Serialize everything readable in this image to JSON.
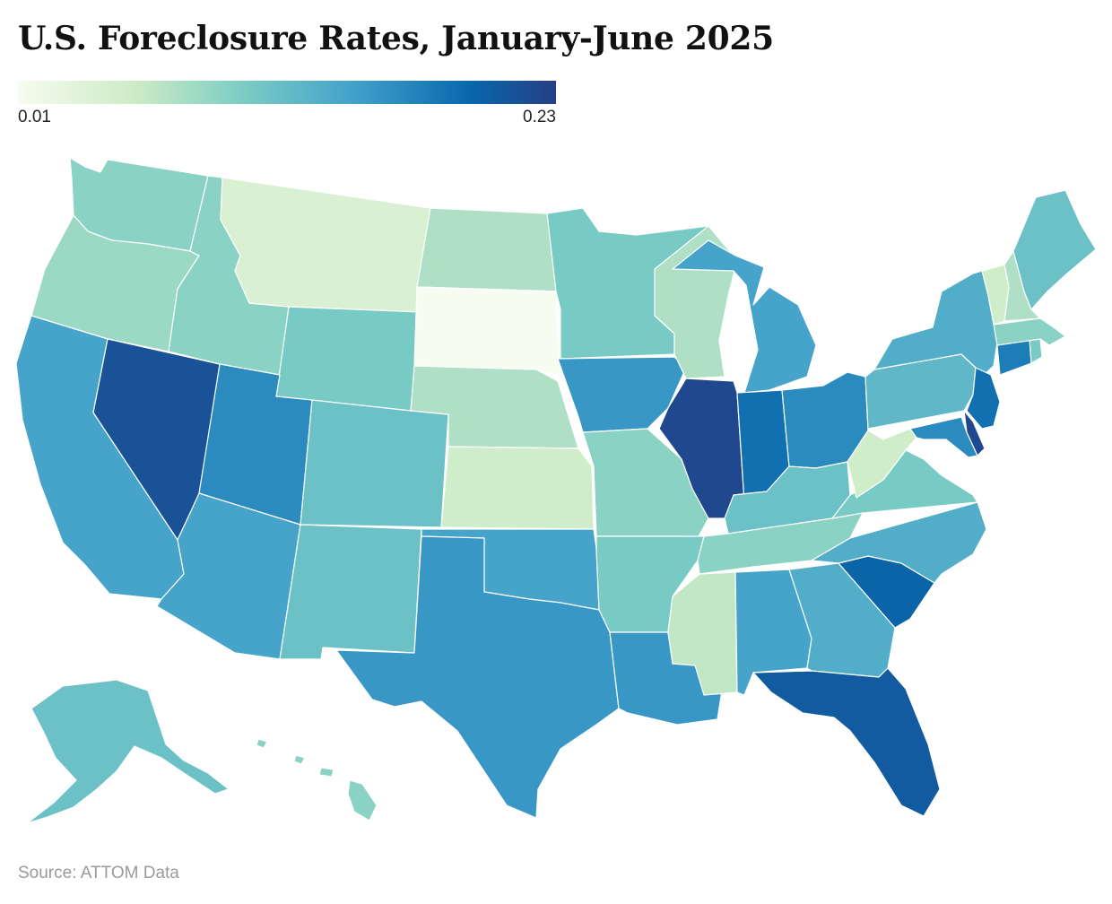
{
  "title": "U.S. Foreclosure Rates, January-June 2025",
  "legend": {
    "min_label": "0.01",
    "max_label": "0.23",
    "min_value": 0.01,
    "max_value": 0.23
  },
  "source": "Source: ATTOM Data",
  "colors": {
    "background": "#ffffff",
    "border": "#ffffff",
    "scale": [
      "#f7fcf0",
      "#ccebc5",
      "#7bccc4",
      "#43a2ca",
      "#0868ac",
      "#273f85"
    ]
  },
  "chart_data": {
    "type": "choropleth",
    "title": "U.S. Foreclosure Rates, January-June 2025",
    "value_range": [
      0.01,
      0.23
    ],
    "states": [
      {
        "name": "Washington",
        "value": 0.09
      },
      {
        "name": "Oregon",
        "value": 0.08
      },
      {
        "name": "California",
        "value": 0.14
      },
      {
        "name": "Nevada",
        "value": 0.21
      },
      {
        "name": "Idaho",
        "value": 0.09
      },
      {
        "name": "Montana",
        "value": 0.04
      },
      {
        "name": "Wyoming",
        "value": 0.1
      },
      {
        "name": "Utah",
        "value": 0.16
      },
      {
        "name": "Arizona",
        "value": 0.14
      },
      {
        "name": "Colorado",
        "value": 0.11
      },
      {
        "name": "New Mexico",
        "value": 0.11
      },
      {
        "name": "North Dakota",
        "value": 0.07
      },
      {
        "name": "South Dakota",
        "value": 0.01
      },
      {
        "name": "Nebraska",
        "value": 0.07
      },
      {
        "name": "Kansas",
        "value": 0.05
      },
      {
        "name": "Oklahoma",
        "value": 0.14
      },
      {
        "name": "Texas",
        "value": 0.15
      },
      {
        "name": "Minnesota",
        "value": 0.1
      },
      {
        "name": "Iowa",
        "value": 0.15
      },
      {
        "name": "Missouri",
        "value": 0.09
      },
      {
        "name": "Arkansas",
        "value": 0.1
      },
      {
        "name": "Louisiana",
        "value": 0.15
      },
      {
        "name": "Wisconsin",
        "value": 0.07
      },
      {
        "name": "Illinois",
        "value": 0.22
      },
      {
        "name": "Michigan",
        "value": 0.14
      },
      {
        "name": "Indiana",
        "value": 0.18
      },
      {
        "name": "Ohio",
        "value": 0.16
      },
      {
        "name": "Kentucky",
        "value": 0.11
      },
      {
        "name": "Tennessee",
        "value": 0.09
      },
      {
        "name": "Mississippi",
        "value": 0.06
      },
      {
        "name": "Alabama",
        "value": 0.14
      },
      {
        "name": "Georgia",
        "value": 0.13
      },
      {
        "name": "Florida",
        "value": 0.2
      },
      {
        "name": "South Carolina",
        "value": 0.19
      },
      {
        "name": "North Carolina",
        "value": 0.13
      },
      {
        "name": "Virginia",
        "value": 0.1
      },
      {
        "name": "West Virginia",
        "value": 0.05
      },
      {
        "name": "Pennsylvania",
        "value": 0.12
      },
      {
        "name": "New York",
        "value": 0.13
      },
      {
        "name": "Maryland",
        "value": 0.16
      },
      {
        "name": "Delaware",
        "value": 0.22
      },
      {
        "name": "New Jersey",
        "value": 0.18
      },
      {
        "name": "Connecticut",
        "value": 0.17
      },
      {
        "name": "Rhode Island",
        "value": 0.1
      },
      {
        "name": "Massachusetts",
        "value": 0.09
      },
      {
        "name": "Vermont",
        "value": 0.05
      },
      {
        "name": "New Hampshire",
        "value": 0.07
      },
      {
        "name": "Maine",
        "value": 0.11
      },
      {
        "name": "Alaska",
        "value": 0.11
      },
      {
        "name": "Hawaii",
        "value": 0.09
      }
    ]
  }
}
